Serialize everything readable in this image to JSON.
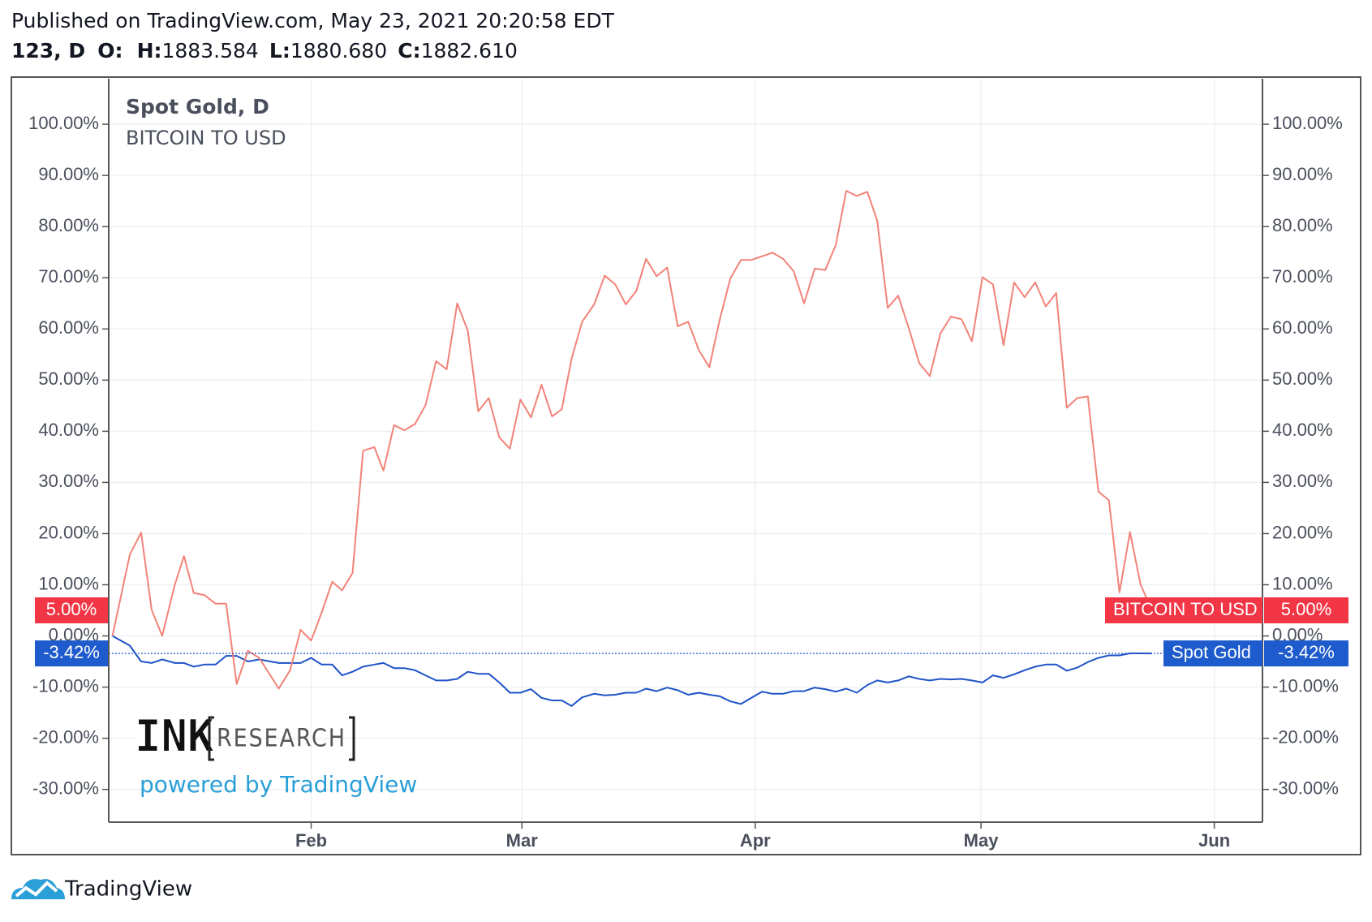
{
  "header": {
    "published": "Published on TradingView.com, May 23, 2021 20:20:58 EDT",
    "symbol": "123, D",
    "o_label": "O:",
    "h_label": "H:",
    "high": "1883.584",
    "l_label": "L:",
    "low": "1880.680",
    "c_label": "C:",
    "close": "1882.610"
  },
  "watermark": {
    "brand": "INK",
    "brand_sub": "RESEARCH",
    "powered": "powered by TradingView"
  },
  "footer": {
    "logo": "TradingView"
  },
  "chart_data": {
    "type": "line",
    "symbol_title": "Spot Gold, D",
    "grid": true,
    "x": [
      5.6,
      7.9,
      9.4,
      10.8,
      12.2,
      13.9,
      15.1,
      16.4,
      17.8,
      19.3,
      20.7,
      22.1,
      23.6,
      25.1,
      27.7,
      29.2,
      30.6,
      32.0,
      33.4,
      34.8,
      36.1,
      37.5,
      38.9,
      40.4,
      41.6,
      43.0,
      44.4,
      45.8,
      47.2,
      48.6,
      50.0,
      51.4,
      52.8,
      54.2,
      55.6,
      57.0,
      58.4,
      59.8,
      61.2,
      62.6,
      64.0,
      65.3,
      66.6,
      68.0,
      69.6,
      71.0,
      72.4,
      73.8,
      75.2,
      76.5,
      77.9,
      79.3,
      80.7,
      82.1,
      83.5,
      84.9,
      86.3,
      87.7,
      89.1,
      90.5,
      91.9,
      93.3,
      94.7,
      96.1,
      97.5,
      98.9,
      100.3,
      101.7,
      103.1,
      104.5,
      105.9,
      107.2,
      108.6,
      110.0,
      111.4,
      112.8,
      114.2,
      115.6,
      117.0,
      118.4,
      119.8,
      121.2,
      122.6,
      124.0,
      125.4,
      126.8,
      128.2,
      129.6,
      131.0,
      132.4,
      133.8,
      135.2,
      136.6,
      138.0,
      139.4,
      140.8,
      142.2,
      143.7
    ],
    "series": [
      {
        "name": "Spot Gold",
        "color": "#1e53c8",
        "badge_color": "#1e5bcc",
        "last_label": "-3.42%",
        "values": [
          0,
          -1.9,
          -5.0,
          -5.3,
          -4.6,
          -5.3,
          -5.3,
          -6.0,
          -5.6,
          -5.6,
          -3.9,
          -3.9,
          -5.0,
          -4.6,
          -5.3,
          -5.3,
          -5.3,
          -4.3,
          -5.6,
          -5.6,
          -7.7,
          -7.0,
          -6.0,
          -5.6,
          -5.3,
          -6.3,
          -6.3,
          -6.7,
          -7.7,
          -8.7,
          -8.7,
          -8.4,
          -7.0,
          -7.4,
          -7.4,
          -9.1,
          -11.1,
          -11.1,
          -10.4,
          -12.1,
          -12.6,
          -12.6,
          -13.7,
          -12.0,
          -11.3,
          -11.6,
          -11.5,
          -11.1,
          -11.1,
          -10.3,
          -10.8,
          -10.1,
          -10.6,
          -11.5,
          -11.1,
          -11.5,
          -11.8,
          -12.8,
          -13.3,
          -12.1,
          -10.9,
          -11.3,
          -11.3,
          -10.8,
          -10.8,
          -10.1,
          -10.4,
          -10.9,
          -10.3,
          -11.1,
          -9.6,
          -8.7,
          -9.1,
          -8.7,
          -7.9,
          -8.4,
          -8.7,
          -8.4,
          -8.5,
          -8.4,
          -8.7,
          -9.1,
          -7.7,
          -8.2,
          -7.5,
          -6.7,
          -6.0,
          -5.6,
          -5.6,
          -6.8,
          -6.2,
          -5.1,
          -4.3,
          -3.8,
          -3.8,
          -3.4,
          -3.4,
          -3.42
        ]
      },
      {
        "name": "BITCOIN TO USD",
        "color": "#f28379",
        "badge_color": "#f23645",
        "last_label": "5.00%",
        "values": [
          0,
          15.9,
          20.2,
          5.1,
          0,
          10.1,
          15.6,
          8.4,
          8.0,
          6.3,
          6.3,
          -9.4,
          -2.9,
          -4.3,
          -10.3,
          -6.7,
          1.2,
          -0.9,
          4.6,
          10.6,
          8.9,
          12.3,
          36.2,
          36.9,
          32.3,
          41.2,
          40.2,
          41.4,
          45.1,
          53.7,
          52.1,
          65.0,
          59.7,
          43.9,
          46.5,
          38.8,
          36.6,
          46.2,
          42.7,
          49.1,
          42.9,
          44.3,
          54.2,
          61.4,
          64.8,
          70.4,
          68.7,
          64.8,
          67.4,
          73.7,
          70.3,
          72.0,
          60.5,
          61.4,
          55.9,
          52.5,
          61.9,
          69.9,
          73.5,
          73.5,
          74.2,
          74.9,
          73.7,
          71.3,
          65.0,
          71.8,
          71.5,
          76.4,
          87.0,
          86.0,
          86.8,
          81.2,
          64.1,
          66.5,
          60.2,
          53.3,
          50.8,
          59.1,
          62.4,
          61.9,
          57.6,
          70.1,
          68.7,
          56.8,
          69.1,
          66.2,
          69.1,
          64.4,
          67.0,
          44.6,
          46.5,
          46.8,
          28.2,
          26.5,
          8.5,
          20.3,
          10.1,
          5.0
        ]
      }
    ],
    "xlim": [
      5.1,
      158.4
    ],
    "xticks": [
      {
        "value": 32,
        "label": "Feb"
      },
      {
        "value": 60,
        "label": "Mar"
      },
      {
        "value": 91,
        "label": "Apr"
      },
      {
        "value": 121,
        "label": "May"
      },
      {
        "value": 152,
        "label": "Jun"
      }
    ],
    "ylim": [
      -36.4,
      108.9
    ],
    "yticks": [
      {
        "value": -30,
        "label": "-30.00%"
      },
      {
        "value": -20,
        "label": "-20.00%"
      },
      {
        "value": -10,
        "label": "-10.00%"
      },
      {
        "value": 0,
        "label": "0.00%"
      },
      {
        "value": 10,
        "label": "10.00%"
      },
      {
        "value": 20,
        "label": "20.00%"
      },
      {
        "value": 30,
        "label": "30.00%"
      },
      {
        "value": 40,
        "label": "40.00%"
      },
      {
        "value": 50,
        "label": "50.00%"
      },
      {
        "value": 60,
        "label": "60.00%"
      },
      {
        "value": 70,
        "label": "70.00%"
      },
      {
        "value": 80,
        "label": "80.00%"
      },
      {
        "value": 90,
        "label": "90.00%"
      },
      {
        "value": 100,
        "label": "100.00%"
      }
    ]
  }
}
